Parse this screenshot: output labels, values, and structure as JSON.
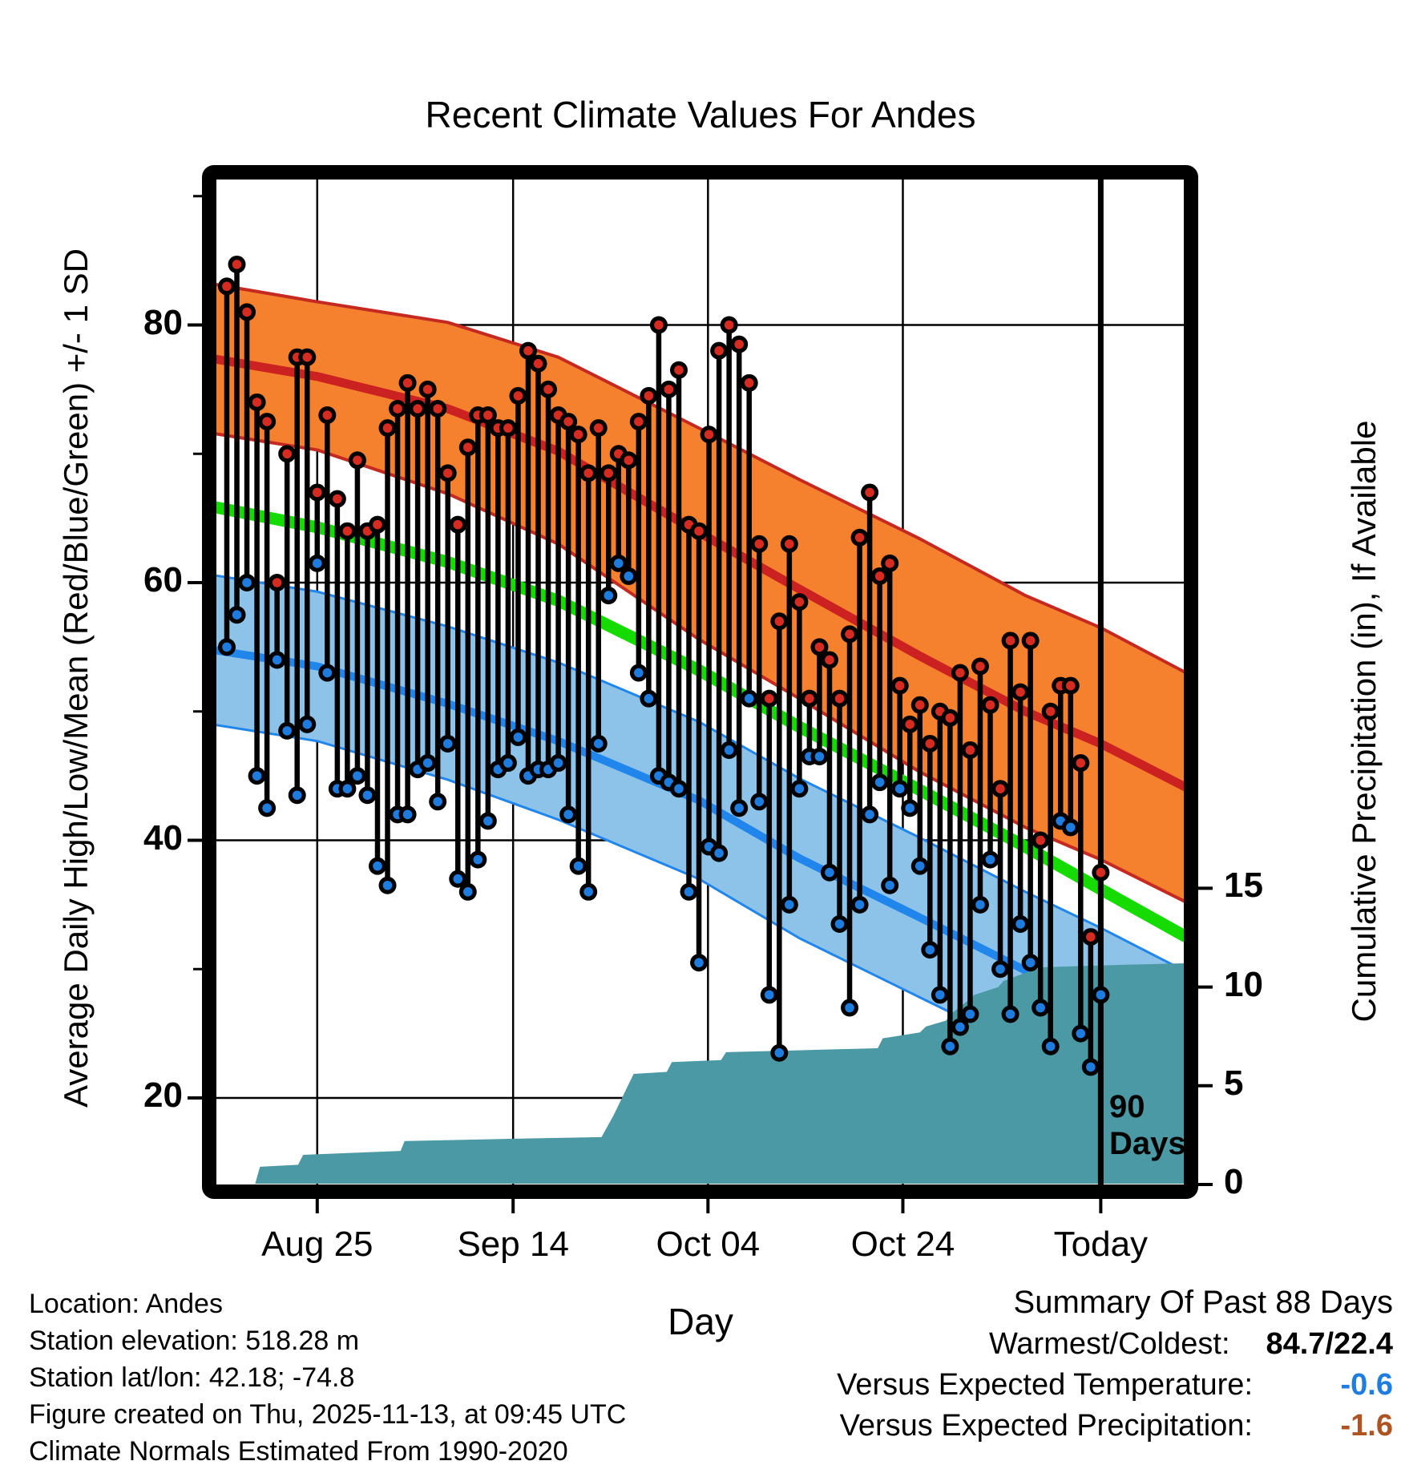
{
  "title": "Recent Climate Values For Andes",
  "axes": {
    "x_label": "Day",
    "y_left_label": "Average Daily High/Low/Mean (Red/Blue/Green) +/- 1 SD",
    "y_right_label": "Cumulative Precipitation (in), If Available",
    "x_ticks": [
      {
        "label": "Aug 25",
        "day": 9.0
      },
      {
        "label": "Sep 14",
        "day": 28.5
      },
      {
        "label": "Oct 04",
        "day": 47.9
      },
      {
        "label": "Oct 24",
        "day": 67.3
      },
      {
        "label": "Today",
        "day": 87.0
      }
    ],
    "y_left_ticks": [
      20,
      40,
      60,
      80
    ],
    "y_left_minor_ticks": [
      30,
      50,
      70,
      90
    ],
    "y_right_ticks": [
      0,
      5,
      10,
      15
    ]
  },
  "annotations": {
    "ninety_days_line1": "90",
    "ninety_days_line2": "Days",
    "ninety_days_day": 87.0
  },
  "footer": {
    "lines": [
      "Location: Andes",
      "Station elevation: 518.28 m",
      "Station lat/lon: 42.18; -74.8",
      "Figure created on Thu, 2025-11-13, at 09:45 UTC",
      "Climate Normals Estimated From 1990-2020"
    ]
  },
  "summary": {
    "title": "Summary Of Past 88 Days",
    "rows": [
      {
        "label": "Warmest/Coldest:",
        "value": "84.7/22.4",
        "value_color": "#000000"
      },
      {
        "label": "Versus Expected Temperature:",
        "value": "-0.6",
        "value_color": "#1F7DE0"
      },
      {
        "label": "Versus Expected Precipitation:",
        "value": "-1.6",
        "value_color": "#AE5322"
      }
    ]
  },
  "colors": {
    "high_band": "#F5802D",
    "band_edge_red": "#C42A21",
    "high_mean_line": "#CB2121",
    "mean_line": "#16DB01",
    "low_band": "#8DC2E9",
    "low_mean_line": "#2186EB",
    "precip_fill": "#4A99A4",
    "dot_high": "#D52B20",
    "dot_low": "#1D7CDE",
    "stem": "#000000",
    "grid": "#000000"
  },
  "chart_data": {
    "type": "composite",
    "subtype": "daily high/low stems + climate normal bands + cumulative precipitation area",
    "x_unit": "day_index",
    "n_days": 88,
    "temp_axis_ticks": [
      20,
      40,
      60,
      80
    ],
    "precip_axis_ticks": [
      0,
      5,
      10,
      15
    ],
    "daily_high": [
      83,
      84.7,
      81,
      74,
      72.5,
      60,
      70,
      77.5,
      77.5,
      67,
      73,
      66.5,
      64,
      69.5,
      64,
      64.5,
      72,
      73.5,
      75.5,
      73.5,
      75,
      73.5,
      68.5,
      64.5,
      70.5,
      73,
      73,
      72,
      72,
      74.5,
      78,
      77,
      75,
      73,
      72.5,
      71.5,
      68.5,
      72,
      68.5,
      70,
      69.5,
      72.5,
      74.5,
      80,
      75,
      76.5,
      64.5,
      64,
      71.5,
      78,
      80,
      78.5,
      75.5,
      63,
      51,
      57,
      63,
      58.5,
      51,
      55,
      54,
      51,
      56,
      63.5,
      67,
      60.5,
      61.5,
      52,
      49,
      50.5,
      47.5,
      50,
      49.5,
      53,
      47,
      53.5,
      50.5,
      44,
      55.5,
      51.5,
      55.5,
      40,
      50,
      52,
      52,
      46,
      32.5,
      37.5
    ],
    "daily_low": [
      55,
      57.5,
      60,
      45,
      42.5,
      54,
      48.5,
      43.5,
      49,
      61.5,
      53,
      44,
      44,
      45,
      43.5,
      38,
      36.5,
      42,
      42,
      45.5,
      46,
      43,
      47.5,
      37,
      36,
      38.5,
      41.5,
      45.5,
      46,
      48,
      45,
      45.5,
      45.5,
      46,
      42,
      38,
      36,
      47.5,
      59,
      61.5,
      60.5,
      53,
      51,
      45,
      44.5,
      44,
      36,
      30.5,
      39.5,
      39,
      47,
      42.5,
      51,
      43,
      28,
      23.5,
      35,
      44,
      46.5,
      46.5,
      37.5,
      33.5,
      27,
      35,
      42,
      44.5,
      36.5,
      44,
      42.5,
      38,
      31.5,
      28,
      24,
      25.5,
      26.5,
      35,
      38.5,
      30,
      26.5,
      33.5,
      30.5,
      27,
      24,
      41.5,
      41,
      25,
      22.4,
      28
    ],
    "normal_anchor_days": [
      -1.5,
      9,
      22,
      33,
      47,
      57,
      69,
      79.5,
      87,
      95.5
    ],
    "normal_high_upper": [
      83.2,
      81.8,
      80.2,
      77.5,
      72.0,
      68.0,
      63.4,
      59.0,
      56.5,
      53.0
    ],
    "normal_high_mean": [
      77.4,
      76.0,
      73.5,
      70.2,
      63.9,
      59.5,
      54.3,
      50.0,
      47.5,
      44.1
    ],
    "normal_high_lower": [
      71.6,
      70.3,
      66.9,
      63.0,
      55.6,
      51.0,
      45.3,
      41.0,
      38.5,
      35.2
    ],
    "normal_mean": [
      65.9,
      64.3,
      61.6,
      58.6,
      53.2,
      48.8,
      43.9,
      39.5,
      36.2,
      32.5
    ],
    "normal_low_upper": [
      60.6,
      59.3,
      56.6,
      53.8,
      49.2,
      44.8,
      40.2,
      36.0,
      33.2,
      29.8
    ],
    "normal_low_mean": [
      54.8,
      53.5,
      50.6,
      47.7,
      43.1,
      38.6,
      34.0,
      29.9,
      27.3,
      24.1
    ],
    "normal_low_lower": [
      49.0,
      47.7,
      44.7,
      41.6,
      37.0,
      32.4,
      27.8,
      23.8,
      21.5,
      18.5
    ],
    "precip_cumulative_steps": [
      [
        2.8,
        0
      ],
      [
        3.3,
        0.9
      ],
      [
        7.1,
        1.0
      ],
      [
        7.6,
        1.5
      ],
      [
        17.3,
        1.7
      ],
      [
        17.7,
        2.2
      ],
      [
        26.9,
        2.3
      ],
      [
        37.3,
        2.4
      ],
      [
        38.5,
        3.5
      ],
      [
        40.5,
        5.6
      ],
      [
        43.8,
        5.7
      ],
      [
        44.3,
        6.2
      ],
      [
        49.2,
        6.3
      ],
      [
        49.7,
        6.7
      ],
      [
        57.2,
        6.8
      ],
      [
        64.8,
        6.9
      ],
      [
        65.3,
        7.4
      ],
      [
        69.0,
        7.7
      ],
      [
        69.6,
        8.0
      ],
      [
        71.6,
        8.3
      ],
      [
        72.0,
        8.6
      ],
      [
        74.0,
        9.4
      ],
      [
        74.4,
        9.6
      ],
      [
        76.8,
        10.0
      ],
      [
        77.3,
        10.3
      ],
      [
        79.4,
        10.7
      ],
      [
        81.1,
        11.0
      ],
      [
        87.5,
        11.1
      ],
      [
        95.3,
        11.2
      ]
    ]
  }
}
